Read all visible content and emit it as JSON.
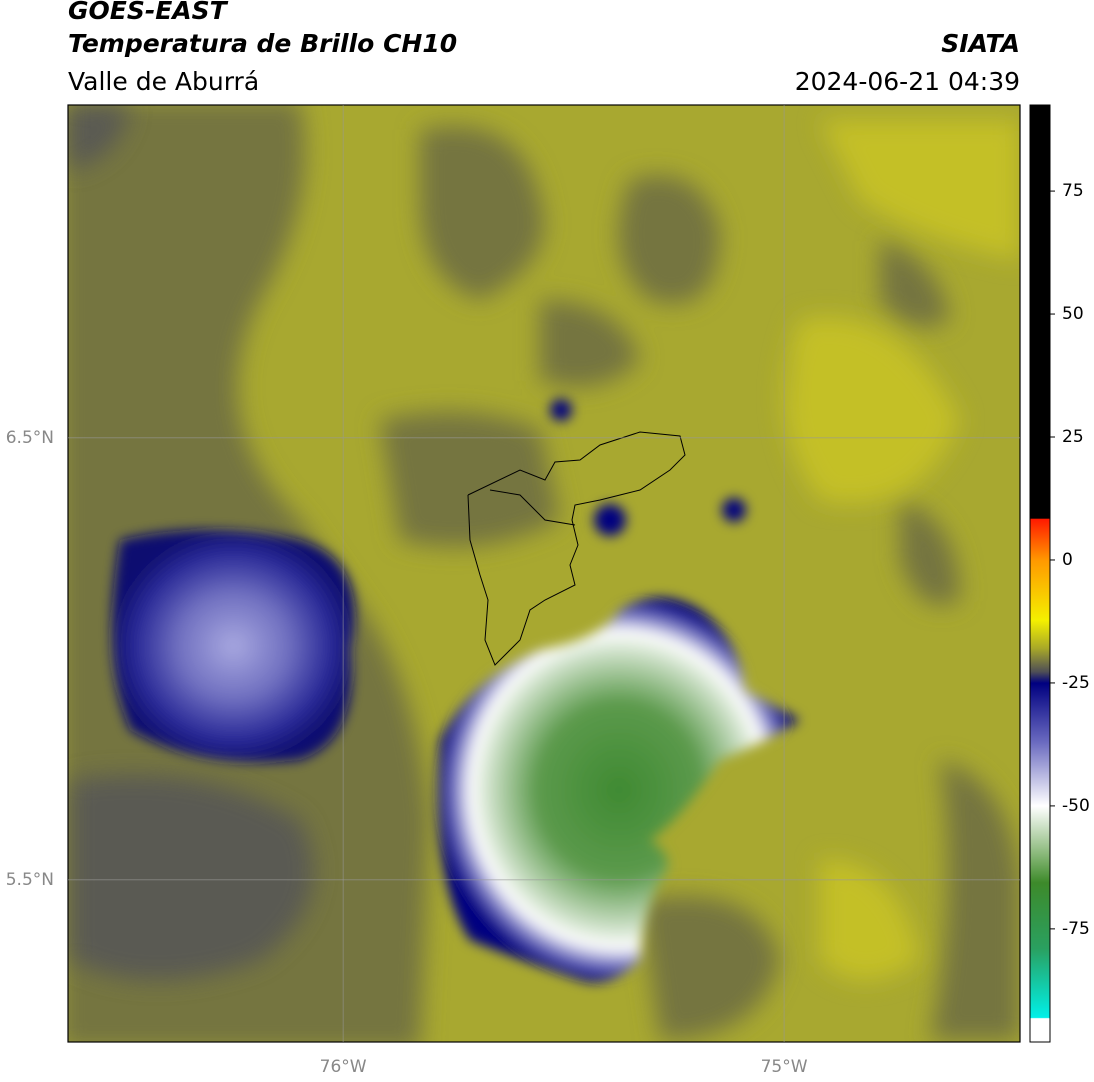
{
  "header": {
    "title": "GOES-EAST",
    "subtitle": "Temperatura de Brillo CH10",
    "region": "Valle de Aburrá",
    "source": "SIATA",
    "datetime": "2024-06-21 04:39"
  },
  "map": {
    "latlim": [
      5.133,
      7.253
    ],
    "lonlim": [
      -76.624,
      -74.465
    ],
    "latticks": [
      {
        "value": 6.5,
        "label": "6.5°N"
      },
      {
        "value": 5.5,
        "label": "5.5°N"
      }
    ],
    "lonticks": [
      {
        "value": -76,
        "label": "76°W"
      },
      {
        "value": -75,
        "label": "75°W"
      }
    ],
    "grid": true
  },
  "colorbar": {
    "lim": [
      -98,
      92.5
    ],
    "ticks": [
      75,
      50,
      25,
      0,
      -25,
      -50,
      -75
    ]
  }
}
